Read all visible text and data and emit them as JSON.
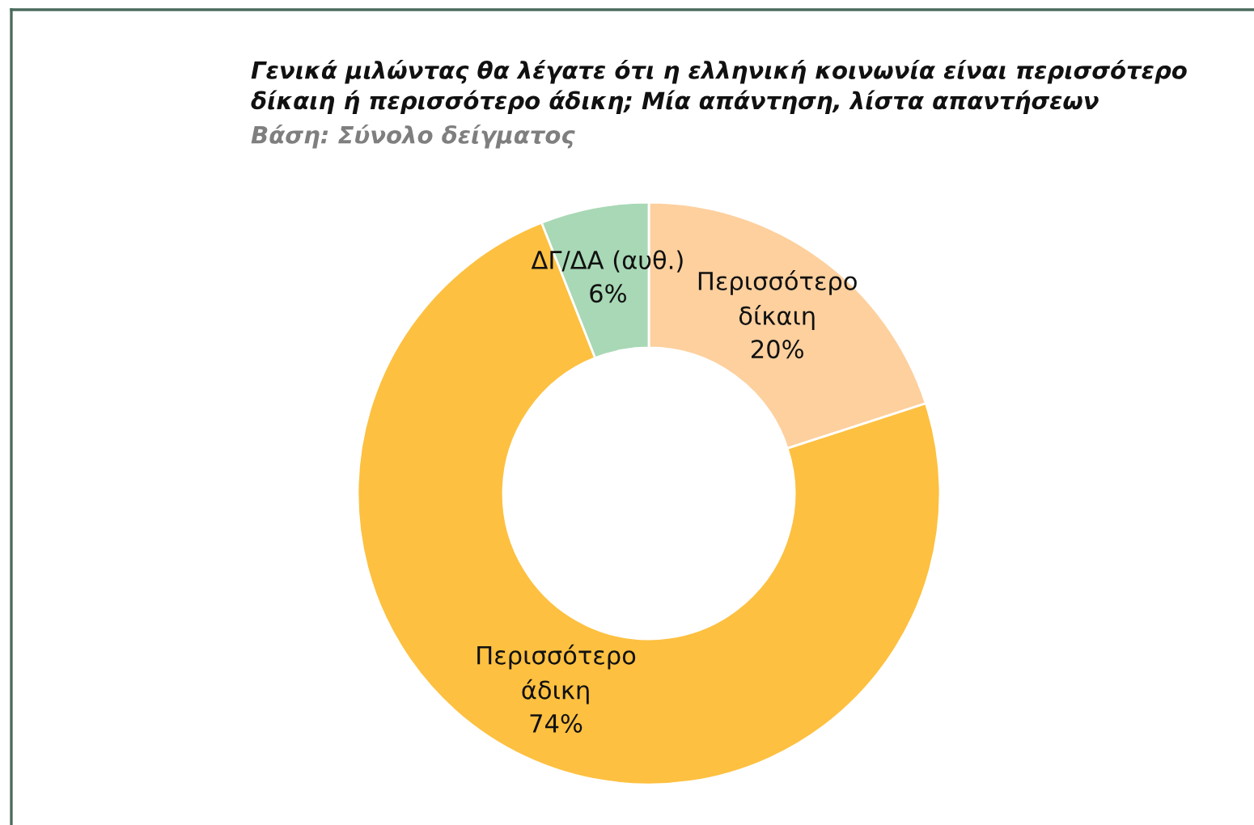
{
  "chart_data": {
    "type": "donut",
    "title": "Γενικά μιλώντας θα λέγατε ότι η ελληνική κοινωνία είναι περισσότερο\nδίκαιη ή περισσότερο άδικη; Μία απάντηση, λίστα απαντήσεων",
    "subtitle": "Βάση: Σύνολο δείγματος",
    "categories": [
      "Περισσότερο\nδίκαιη",
      "Περισσότερο\nάδικη",
      "ΔΓ/ΔΑ (αυθ.)"
    ],
    "values": [
      20,
      74,
      6
    ],
    "colors": [
      "#fdd09e",
      "#fdc040",
      "#a8d8b5"
    ],
    "value_labels": [
      "20%",
      "74%",
      "6%"
    ],
    "legend": false
  }
}
